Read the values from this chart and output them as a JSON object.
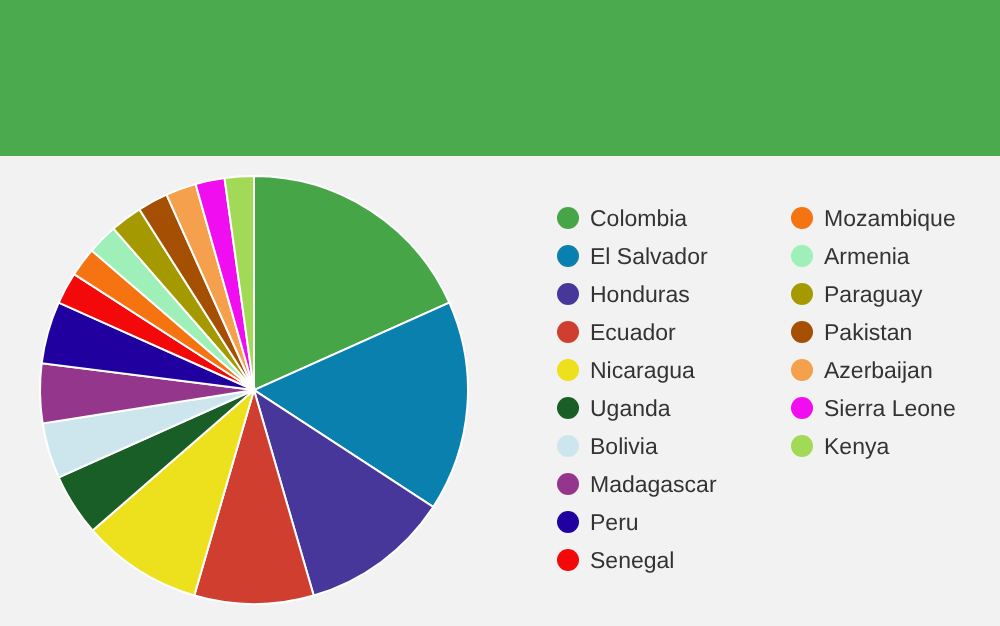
{
  "chart_data": {
    "type": "pie",
    "legend": "right",
    "categories": [
      "Colombia",
      "El Salvador",
      "Honduras",
      "Ecuador",
      "Nicaragua",
      "Uganda",
      "Bolivia",
      "Madagascar",
      "Peru",
      "Senegal",
      "Mozambique",
      "Armenia",
      "Paraguay",
      "Pakistan",
      "Azerbaijan",
      "Sierra Leone",
      "Kenya"
    ],
    "values": [
      18.3,
      15.9,
      11.3,
      9,
      9.1,
      4.7,
      4.2,
      4.5,
      4.7,
      2.4,
      2.2,
      2.3,
      2.4,
      2.3,
      2.3,
      2.2,
      2.2
    ],
    "colors": [
      "#46a546",
      "#0a80ae",
      "#47379a",
      "#cf3e2e",
      "#ede01c",
      "#185e26",
      "#cde6ee",
      "#94368b",
      "#2100a0",
      "#f30909",
      "#f57310",
      "#9ef0b8",
      "#a49a00",
      "#a54f03",
      "#f5a04c",
      "#f00ef0",
      "#a2d956"
    ]
  }
}
